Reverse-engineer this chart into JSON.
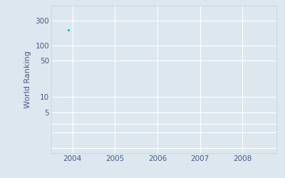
{
  "ylabel": "World Ranking",
  "data_x": [
    2003.9
  ],
  "data_y": [
    200
  ],
  "marker_color": "#00CFCF",
  "marker_size": 2.5,
  "xlim": [
    2003.5,
    2008.8
  ],
  "ylim": [
    0.8,
    600
  ],
  "yticks": [
    1,
    2,
    3,
    5,
    10,
    50,
    100,
    300
  ],
  "ytick_labels": [
    "",
    "",
    "",
    "5",
    "10",
    "50",
    "100",
    "300"
  ],
  "xticks": [
    2004,
    2005,
    2006,
    2007,
    2008
  ],
  "axes_face_color": "#dce7f0",
  "fig_face_color": "#dce7f0",
  "tick_label_color": "#4a5a8a",
  "ylabel_color": "#4a5a8a",
  "grid_color": "#ffffff",
  "spine_color": "#c5d0de"
}
